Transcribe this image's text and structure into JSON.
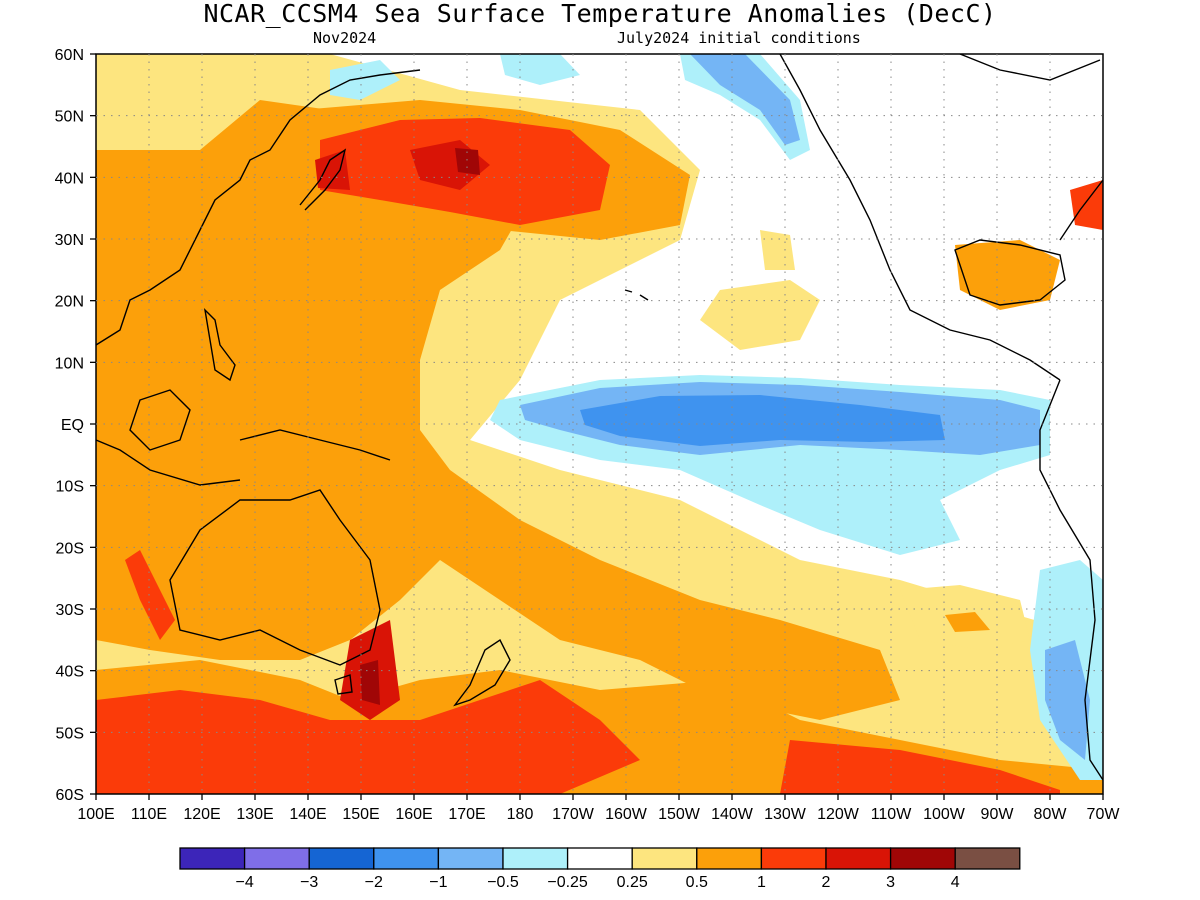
{
  "title": "NCAR_CCSM4 Sea Surface Temperature Anomalies (DecC)",
  "subtitle_left": "Nov2024",
  "subtitle_right": "July2024 initial conditions",
  "lat_labels": [
    "60N",
    "50N",
    "40N",
    "30N",
    "20N",
    "10N",
    "EQ",
    "10S",
    "20S",
    "30S",
    "40S",
    "50S",
    "60S"
  ],
  "lon_labels": [
    "100E",
    "110E",
    "120E",
    "130E",
    "140E",
    "150E",
    "160E",
    "170E",
    "180",
    "170W",
    "160W",
    "150W",
    "140W",
    "130W",
    "120W",
    "110W",
    "100W",
    "90W",
    "80W",
    "70W"
  ],
  "legend": {
    "colors": [
      "#3c25b9",
      "#7f6ee8",
      "#1565d3",
      "#3f93ef",
      "#74b5f5",
      "#aef0fa",
      "#ffffff",
      "#fde57f",
      "#fca00a",
      "#fb3b09",
      "#d91406",
      "#a00606",
      "#7a4f43"
    ],
    "labels": [
      "-4",
      "-3",
      "-2",
      "-1",
      "-0.5",
      "-0.25",
      "0.25",
      "0.5",
      "1",
      "2",
      "3",
      "4"
    ]
  }
}
